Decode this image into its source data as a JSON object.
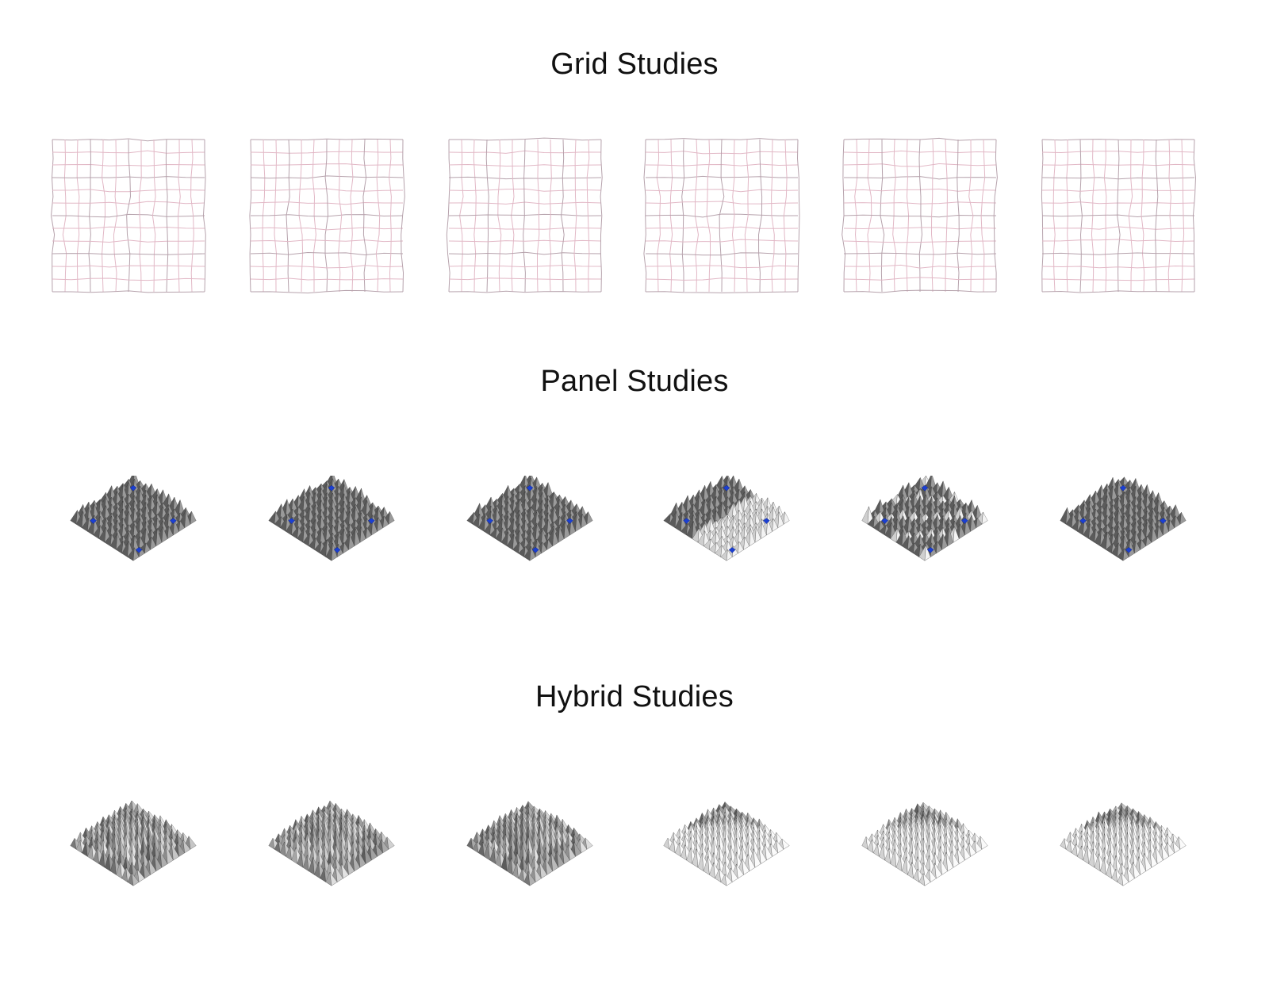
{
  "sections": {
    "grid": {
      "title": "Grid Studies",
      "count": 6,
      "line_color": "#e2b8c6",
      "accent_line_color": "#b6a2ac"
    },
    "panel": {
      "title": "Panel Studies",
      "count": 6,
      "panel_color": "#5b5b5b",
      "highlight_color": "#1b3fd1"
    },
    "hybrid": {
      "title": "Hybrid Studies",
      "count": 6,
      "tone_dark": "#3a3a3a",
      "tone_light": "#f0f0f0"
    }
  }
}
